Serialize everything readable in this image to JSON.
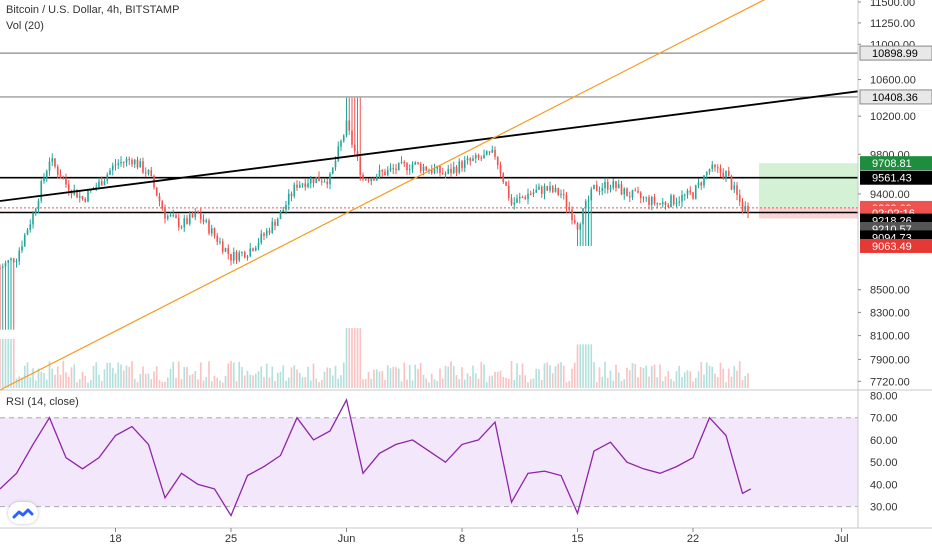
{
  "header": {
    "title": "Bitcoin / U.S. Dollar, 4h, BITSTAMP",
    "volume_label": "Vol (20)",
    "rsi_label": "RSI (14, close)"
  },
  "colors": {
    "up": "#26a69a",
    "down": "#ef5350",
    "trend_orange": "#f59b23",
    "rsi_line": "#8e24aa",
    "rsi_band": "#f3e8fb",
    "target_zone": "#d4f1d5",
    "stop_zone": "#fbd5d5"
  },
  "logo_icon": "tradingview-logo-icon",
  "chart_data": [
    {
      "type": "candlestick",
      "title": "Bitcoin / U.S. Dollar, 4h, BITSTAMP",
      "y_scale": "log",
      "ylim": [
        7650,
        11500
      ],
      "y_ticks": [
        "11500.00",
        "11250.00",
        "11000.00",
        "10600.00",
        "10200.00",
        "9800.00",
        "9400.00",
        "8500.00",
        "8300.00",
        "8100.00",
        "7900.00",
        "7720.00"
      ],
      "x_ticks": [
        "18",
        "25",
        "Jun",
        "8",
        "15",
        "22",
        "Jul"
      ],
      "x_tick_dates": [
        "2020-05-18",
        "2020-05-25",
        "2020-06-01",
        "2020-06-08",
        "2020-06-15",
        "2020-06-22",
        "2020-07-01"
      ],
      "x_range": [
        "2020-05-11",
        "2020-07-02"
      ],
      "close_path": [
        [
          "2020-05-11",
          8700
        ],
        [
          "2020-05-12",
          8800
        ],
        [
          "2020-05-13",
          9200
        ],
        [
          "2020-05-14",
          9750
        ],
        [
          "2020-05-15",
          9500
        ],
        [
          "2020-05-16",
          9350
        ],
        [
          "2020-05-17",
          9500
        ],
        [
          "2020-05-18",
          9700
        ],
        [
          "2020-05-19",
          9750
        ],
        [
          "2020-05-20",
          9600
        ],
        [
          "2020-05-21",
          9200
        ],
        [
          "2020-05-22",
          9100
        ],
        [
          "2020-05-23",
          9200
        ],
        [
          "2020-05-24",
          9000
        ],
        [
          "2020-05-25",
          8800
        ],
        [
          "2020-05-26",
          8850
        ],
        [
          "2020-05-27",
          9000
        ],
        [
          "2020-05-28",
          9200
        ],
        [
          "2020-05-29",
          9500
        ],
        [
          "2020-05-30",
          9550
        ],
        [
          "2020-05-31",
          9550
        ],
        [
          "2020-06-01",
          10100
        ],
        [
          "2020-06-02",
          9550
        ],
        [
          "2020-06-03",
          9600
        ],
        [
          "2020-06-04",
          9650
        ],
        [
          "2020-06-05",
          9700
        ],
        [
          "2020-06-06",
          9650
        ],
        [
          "2020-06-07",
          9600
        ],
        [
          "2020-06-08",
          9700
        ],
        [
          "2020-06-09",
          9750
        ],
        [
          "2020-06-10",
          9800
        ],
        [
          "2020-06-11",
          9300
        ],
        [
          "2020-06-12",
          9400
        ],
        [
          "2020-06-13",
          9450
        ],
        [
          "2020-06-14",
          9400
        ],
        [
          "2020-06-15",
          9100
        ],
        [
          "2020-06-16",
          9450
        ],
        [
          "2020-06-17",
          9500
        ],
        [
          "2020-06-18",
          9400
        ],
        [
          "2020-06-19",
          9350
        ],
        [
          "2020-06-20",
          9300
        ],
        [
          "2020-06-21",
          9350
        ],
        [
          "2020-06-22",
          9400
        ],
        [
          "2020-06-23",
          9650
        ],
        [
          "2020-06-24",
          9600
        ],
        [
          "2020-06-25",
          9260
        ]
      ],
      "price_levels": [
        {
          "label": "10898.99",
          "value": 10898.99,
          "style": "gray-line"
        },
        {
          "label": "10408.36",
          "value": 10408.36,
          "style": "gray-line"
        },
        {
          "label": "9561.43",
          "value": 9561.43,
          "style": "black-line"
        },
        {
          "label": "9218.26",
          "value": 9218.26,
          "style": "black-line"
        }
      ],
      "price_labels": [
        {
          "label": "9708.81",
          "value": 9708.81,
          "color": "#1e8e3e"
        },
        {
          "label": "9561.43",
          "value": 9561.43,
          "color": "#000000"
        },
        {
          "label": "9262.69",
          "value": 9262.69,
          "color": "#ef5350"
        },
        {
          "label": "02:02:16",
          "value": 9215,
          "color": "#ef5350"
        },
        {
          "label": "9218.26",
          "value": 9140,
          "color": "#000000"
        },
        {
          "label": "9210.57",
          "value": 9060,
          "color": "#555555"
        },
        {
          "label": "9094.73",
          "value": 8980,
          "color": "#000000"
        },
        {
          "label": "9063.49",
          "value": 8900,
          "color": "#e53935"
        }
      ],
      "last_price": 9262.69,
      "position_zone": {
        "start": "2020-06-26",
        "end": "2020-07-02",
        "entry": 9262.69,
        "target": 9708.81,
        "stop": 9160
      },
      "trendlines": [
        {
          "color": "black",
          "from": [
            "2020-05-11",
            9330
          ],
          "to": [
            "2020-07-02",
            10470
          ]
        },
        {
          "color": "orange",
          "from": [
            "2020-05-11",
            7650
          ],
          "to": [
            "2020-06-28",
            11700
          ]
        }
      ]
    },
    {
      "type": "bar",
      "title": "Vol (20)",
      "note": "volume bars along the bottom of the price pane"
    },
    {
      "type": "line",
      "title": "RSI (14, close)",
      "ylim": [
        24,
        82
      ],
      "y_ticks": [
        "80.00",
        "70.00",
        "60.00",
        "50.00",
        "40.00",
        "30.00"
      ],
      "band": [
        30,
        70
      ],
      "points": [
        [
          "2020-05-11",
          38
        ],
        [
          "2020-05-12",
          45
        ],
        [
          "2020-05-13",
          58
        ],
        [
          "2020-05-14",
          70
        ],
        [
          "2020-05-15",
          52
        ],
        [
          "2020-05-16",
          47
        ],
        [
          "2020-05-17",
          52
        ],
        [
          "2020-05-18",
          62
        ],
        [
          "2020-05-19",
          66
        ],
        [
          "2020-05-20",
          58
        ],
        [
          "2020-05-21",
          34
        ],
        [
          "2020-05-22",
          45
        ],
        [
          "2020-05-23",
          40
        ],
        [
          "2020-05-24",
          38
        ],
        [
          "2020-05-25",
          26
        ],
        [
          "2020-05-26",
          44
        ],
        [
          "2020-05-27",
          48
        ],
        [
          "2020-05-28",
          53
        ],
        [
          "2020-05-29",
          70
        ],
        [
          "2020-05-30",
          60
        ],
        [
          "2020-05-31",
          64
        ],
        [
          "2020-06-01",
          78
        ],
        [
          "2020-06-02",
          45
        ],
        [
          "2020-06-03",
          54
        ],
        [
          "2020-06-04",
          58
        ],
        [
          "2020-06-05",
          60
        ],
        [
          "2020-06-06",
          55
        ],
        [
          "2020-06-07",
          50
        ],
        [
          "2020-06-08",
          58
        ],
        [
          "2020-06-09",
          60
        ],
        [
          "2020-06-10",
          68
        ],
        [
          "2020-06-11",
          32
        ],
        [
          "2020-06-12",
          45
        ],
        [
          "2020-06-13",
          46
        ],
        [
          "2020-06-14",
          44
        ],
        [
          "2020-06-15",
          27
        ],
        [
          "2020-06-16",
          55
        ],
        [
          "2020-06-17",
          59
        ],
        [
          "2020-06-18",
          50
        ],
        [
          "2020-06-19",
          47
        ],
        [
          "2020-06-20",
          45
        ],
        [
          "2020-06-21",
          48
        ],
        [
          "2020-06-22",
          52
        ],
        [
          "2020-06-23",
          70
        ],
        [
          "2020-06-24",
          62
        ],
        [
          "2020-06-25",
          36
        ],
        [
          "2020-06-25T12:00",
          38
        ]
      ]
    }
  ]
}
